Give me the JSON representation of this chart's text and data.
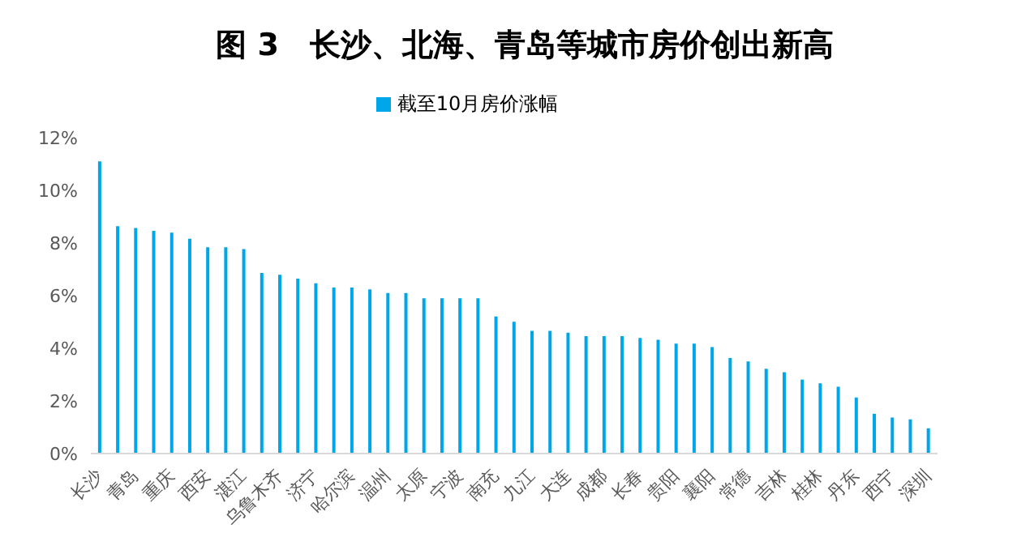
{
  "chart_data": {
    "type": "bar",
    "title": "图 3　长沙、北海、青岛等城市房价创出新高",
    "categories": [
      "长沙",
      null,
      "青岛",
      null,
      "重庆",
      null,
      "西安",
      null,
      "湛江",
      null,
      "乌鲁木齐",
      null,
      "济宁",
      null,
      "哈尔滨",
      null,
      "温州",
      null,
      "太原",
      null,
      "宁波",
      null,
      "南充",
      null,
      "九江",
      null,
      "大连",
      null,
      "成都",
      null,
      "长春",
      null,
      "贵阳",
      null,
      "襄阳",
      null,
      "常德",
      null,
      "吉林",
      null,
      "桂林",
      null,
      "丹东",
      null,
      "西宁",
      null,
      "深圳"
    ],
    "series": [
      {
        "name": "截至10月房价涨幅",
        "color": "#00a6ea",
        "values": [
          11.1,
          8.64,
          8.57,
          8.46,
          8.39,
          8.16,
          7.84,
          7.84,
          7.77,
          6.86,
          6.79,
          6.65,
          6.47,
          6.31,
          6.31,
          6.24,
          6.1,
          6.1,
          5.9,
          5.9,
          5.9,
          5.9,
          5.21,
          5.01,
          4.66,
          4.66,
          4.59,
          4.46,
          4.46,
          4.46,
          4.39,
          4.32,
          4.18,
          4.18,
          4.05,
          3.63,
          3.5,
          3.22,
          3.09,
          2.81,
          2.67,
          2.54,
          2.13,
          1.51,
          1.37,
          1.3,
          0.96
        ]
      }
    ],
    "ylim": [
      0,
      12
    ],
    "yticks": [
      {
        "value": 0,
        "label": "0%"
      },
      {
        "value": 2,
        "label": "2%"
      },
      {
        "value": 4,
        "label": "4%"
      },
      {
        "value": 6,
        "label": "6%"
      },
      {
        "value": 8,
        "label": "8%"
      },
      {
        "value": 10,
        "label": "10%"
      },
      {
        "value": 12,
        "label": "12%"
      }
    ],
    "legend": "top"
  }
}
